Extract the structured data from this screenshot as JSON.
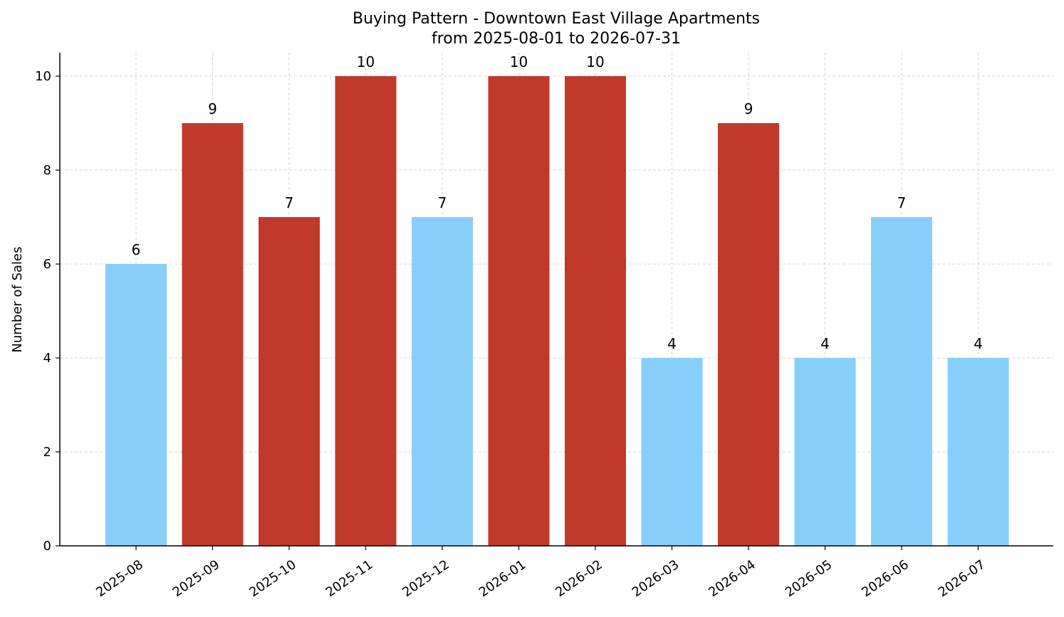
{
  "chart_data": {
    "type": "bar",
    "title": "Buying Pattern - Downtown East Village Apartments",
    "subtitle": "from 2025-08-01 to 2026-07-31",
    "xlabel": "",
    "ylabel": "Number of Sales",
    "categories": [
      "2025-08",
      "2025-09",
      "2025-10",
      "2025-11",
      "2025-12",
      "2026-01",
      "2026-02",
      "2026-03",
      "2026-04",
      "2026-05",
      "2026-06",
      "2026-07"
    ],
    "values": [
      6,
      9,
      7,
      10,
      7,
      10,
      10,
      4,
      9,
      4,
      7,
      4
    ],
    "value_labels": [
      "6",
      "9",
      "7",
      "10",
      "7",
      "10",
      "10",
      "4",
      "9",
      "4",
      "7",
      "4"
    ],
    "bar_colors": [
      "#87CEFA",
      "#C0392B",
      "#C0392B",
      "#C0392B",
      "#87CEFA",
      "#C0392B",
      "#C0392B",
      "#87CEFA",
      "#C0392B",
      "#87CEFA",
      "#87CEFA",
      "#87CEFA"
    ],
    "ylim": [
      0,
      10.5
    ],
    "yticks": [
      0,
      2,
      4,
      6,
      8,
      10
    ],
    "ytick_labels": [
      "0",
      "2",
      "4",
      "6",
      "8",
      "10"
    ],
    "grid": true,
    "legend": false
  }
}
